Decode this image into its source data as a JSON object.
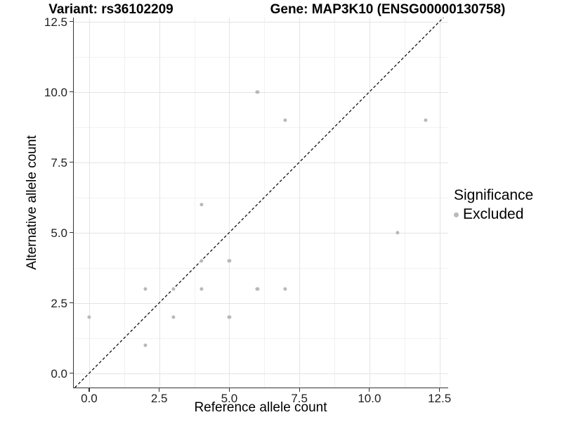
{
  "chart_data": {
    "type": "scatter",
    "title_left": "Variant: rs36102209",
    "title_right": "Gene: MAP3K10 (ENSG00000130758)",
    "xlabel": "Reference allele count",
    "ylabel": "Alternative allele count",
    "xlim": [
      -0.55,
      12.81
    ],
    "ylim": [
      -0.51,
      12.64
    ],
    "x_major_ticks": [
      0,
      2.5,
      5,
      7.5,
      10,
      12.5
    ],
    "x_tick_labels": [
      "0.0",
      "2.5",
      "5.0",
      "7.5",
      "10.0",
      "12.5"
    ],
    "x_minor_ticks": [
      1.25,
      3.75,
      6.25,
      8.75,
      11.25
    ],
    "y_major_ticks": [
      0,
      2.5,
      5,
      7.5,
      10,
      12.5
    ],
    "y_tick_labels": [
      "0.0",
      "2.5",
      "5.0",
      "7.5",
      "10.0",
      "12.5"
    ],
    "y_minor_ticks": [
      1.25,
      3.75,
      6.25,
      8.75,
      11.25
    ],
    "grid": true,
    "legend_position": "right",
    "legend": {
      "title": "Significance",
      "items": [
        {
          "label": "Excluded",
          "color": "#b9b9b9"
        }
      ]
    },
    "series": [
      {
        "name": "Excluded",
        "color": "#b9b9b9",
        "points": [
          [
            0,
            2
          ],
          [
            2,
            1
          ],
          [
            2,
            3
          ],
          [
            3,
            2
          ],
          [
            3,
            3
          ],
          [
            4,
            3
          ],
          [
            4,
            4
          ],
          [
            4,
            6
          ],
          [
            5,
            2
          ],
          [
            5,
            4
          ],
          [
            6,
            3
          ],
          [
            6,
            10
          ],
          [
            7,
            3
          ],
          [
            7,
            9
          ],
          [
            11,
            5
          ],
          [
            12,
            9
          ]
        ]
      }
    ],
    "reference_line": {
      "type": "identity",
      "equation": "y = x",
      "style": "dashed",
      "color": "#111111"
    }
  },
  "colors": {
    "point": "#b9b9b9",
    "grid_major": "#e4e4e4",
    "grid_minor": "#f1f1f1",
    "axis_line": "#333333",
    "tick_text": "#1f1f1f",
    "title_text": "#000000",
    "background": "#ffffff"
  }
}
